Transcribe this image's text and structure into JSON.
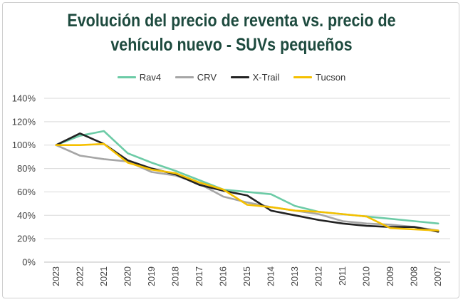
{
  "chart_data": {
    "type": "line",
    "title_line1": "Evolución del precio de reventa vs. precio de",
    "title_line2": "vehículo nuevo - SUVs pequeños",
    "categories": [
      "2023",
      "2022",
      "2021",
      "2020",
      "2019",
      "2018",
      "2017",
      "2016",
      "2015",
      "2014",
      "2013",
      "2012",
      "2011",
      "2010",
      "2009",
      "2008",
      "2007"
    ],
    "yticks": [
      "0%",
      "20%",
      "40%",
      "60%",
      "80%",
      "100%",
      "120%",
      "140%"
    ],
    "ylim": [
      0,
      140
    ],
    "grid": true,
    "legend_position": "top",
    "series": [
      {
        "name": "Rav4",
        "color": "#6ccba6",
        "values": [
          100,
          108,
          112,
          93,
          85,
          78,
          70,
          62,
          60,
          58,
          48,
          43,
          41,
          39,
          37,
          35,
          33
        ]
      },
      {
        "name": "CRV",
        "color": "#a6a6a6",
        "values": [
          100,
          91,
          88,
          86,
          77,
          74,
          67,
          56,
          51,
          47,
          44,
          41,
          35,
          33,
          32,
          30,
          27
        ]
      },
      {
        "name": "X-Trail",
        "color": "#222222",
        "values": [
          100,
          110,
          101,
          87,
          80,
          75,
          66,
          61,
          57,
          44,
          40,
          36,
          33,
          31,
          30,
          30,
          26
        ]
      },
      {
        "name": "Tucson",
        "color": "#f5c000",
        "values": [
          100,
          100,
          101,
          85,
          79,
          76,
          68,
          62,
          49,
          47,
          44,
          43,
          41,
          39,
          29,
          28,
          27
        ]
      }
    ]
  }
}
